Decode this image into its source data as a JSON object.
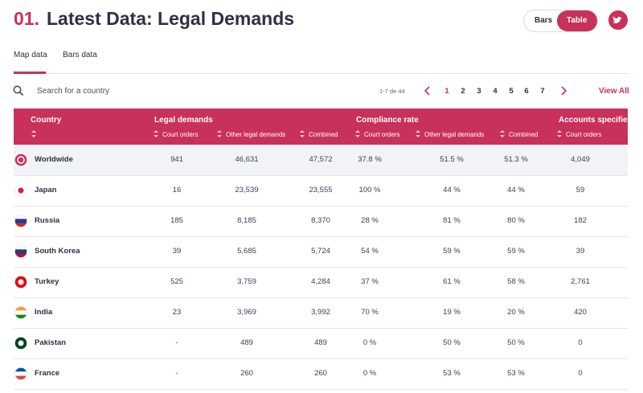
{
  "header": {
    "number": "01.",
    "title": "Latest Data: Legal Demands",
    "toggle": [
      "Bars",
      "Table"
    ]
  },
  "tabs": [
    "Map data",
    "Bars data"
  ],
  "search": {
    "placeholder": "Search for a country"
  },
  "pagination": {
    "range": "1-7 de 44",
    "pages": [
      1,
      2,
      3,
      4,
      5,
      6,
      7
    ],
    "view_all": "View All"
  },
  "table": {
    "country_header": "Country",
    "groups": [
      "Legal demands",
      "Compliance rate",
      "Accounts specified"
    ],
    "subheaders": [
      "Court orders",
      "Other legal demands",
      "Combined",
      "Court orders",
      "Other legal demands",
      "Combined",
      "Court orders"
    ],
    "rows": [
      [
        "Worldwide",
        "941",
        "46,631",
        "47,572",
        "37.8 %",
        "51.5 %",
        "51.3 %",
        "4,049"
      ],
      [
        "Japan",
        "16",
        "23,539",
        "23,555",
        "100 %",
        "44 %",
        "44 %",
        "59"
      ],
      [
        "Russia",
        "185",
        "8,185",
        "8,370",
        "28 %",
        "81 %",
        "80 %",
        "182"
      ],
      [
        "South Korea",
        "39",
        "5,685",
        "5,724",
        "54 %",
        "59 %",
        "59 %",
        "39"
      ],
      [
        "Turkey",
        "525",
        "3,759",
        "4,284",
        "37 %",
        "61 %",
        "58 %",
        "2,761"
      ],
      [
        "India",
        "23",
        "3,969",
        "3,992",
        "70 %",
        "19 %",
        "20 %",
        "420"
      ],
      [
        "Pakistan",
        "-",
        "489",
        "489",
        "0 %",
        "50 %",
        "50 %",
        "0"
      ],
      [
        "France",
        "-",
        "260",
        "260",
        "0 %",
        "53 %",
        "53 %",
        "0"
      ]
    ]
  }
}
